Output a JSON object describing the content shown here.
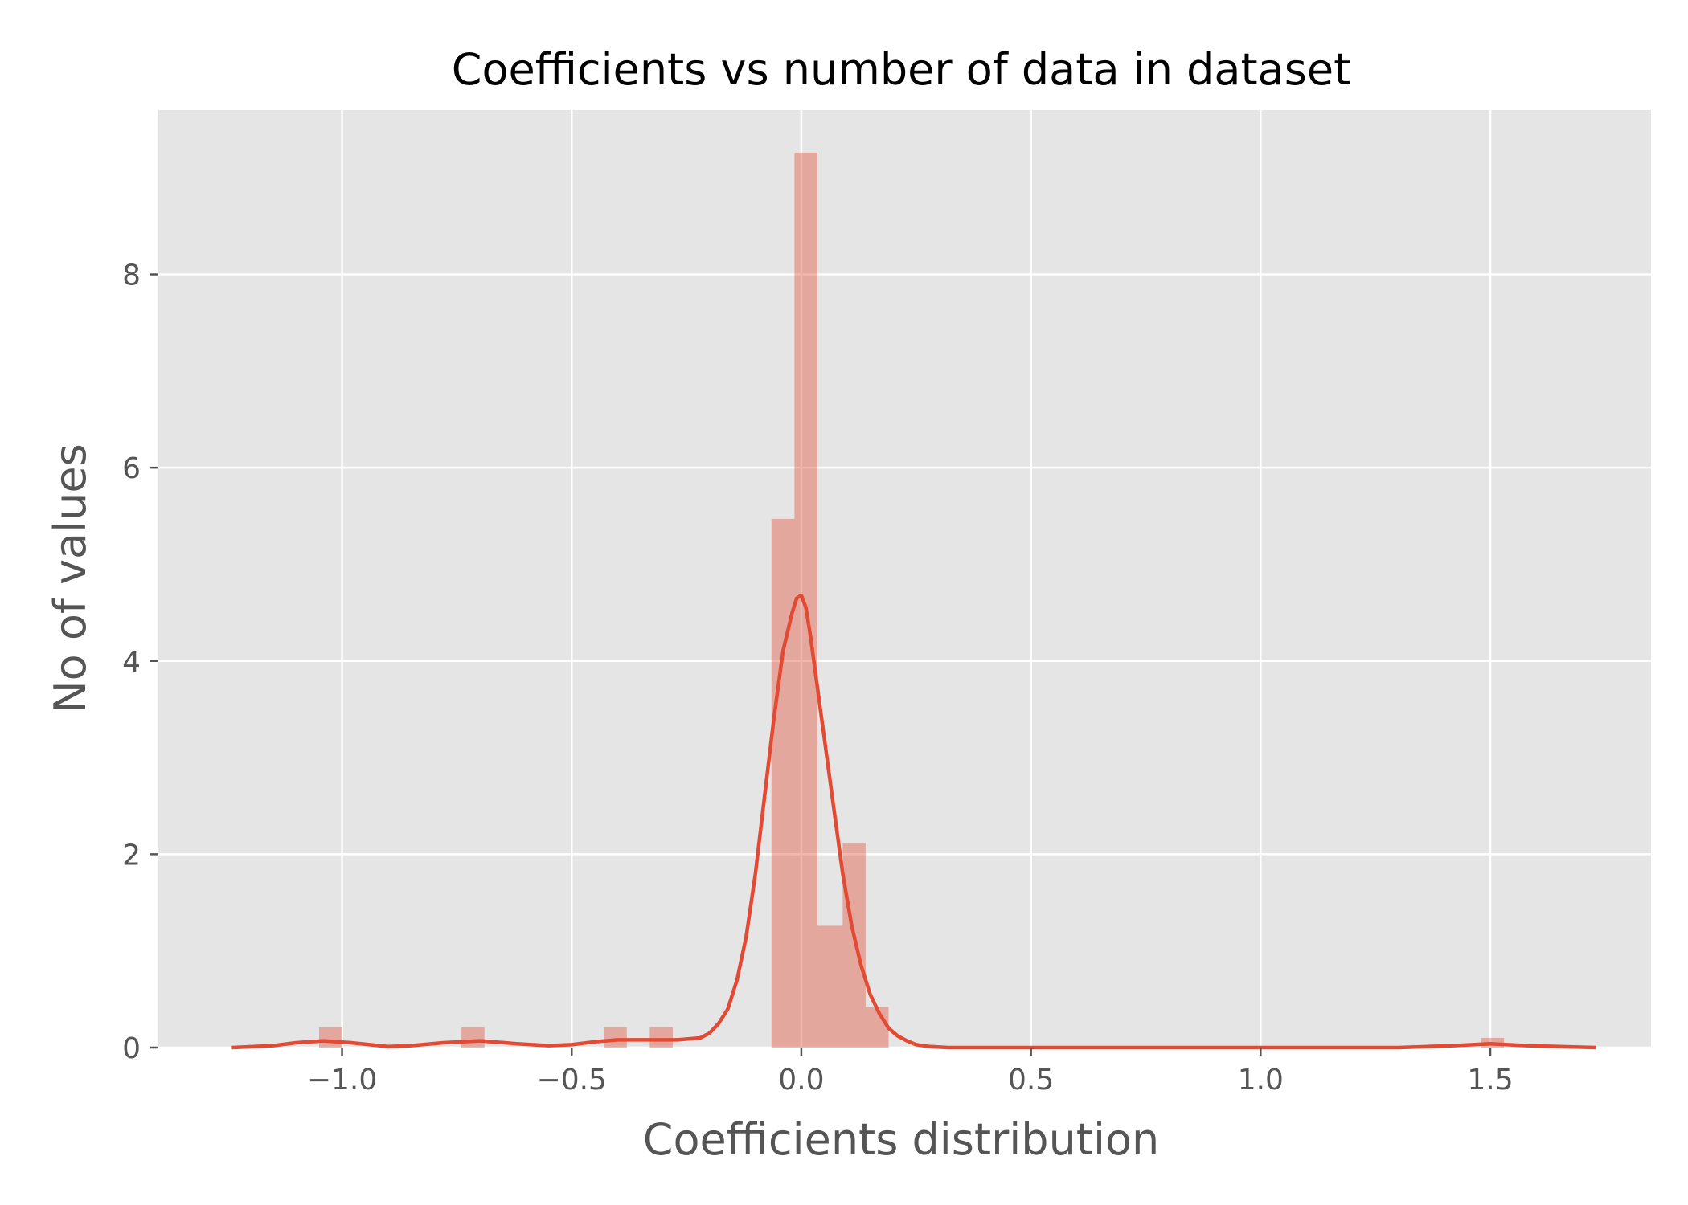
{
  "chart_data": {
    "type": "bar",
    "title": "Coefficients vs number of data in dataset",
    "xlabel": "Coefficients distribution",
    "ylabel": "No of values",
    "xlim": [
      -1.4,
      1.85
    ],
    "ylim": [
      0,
      9.7
    ],
    "x_ticks": [
      -1.0,
      -0.5,
      0.0,
      0.5,
      1.0,
      1.5
    ],
    "x_tick_labels": [
      "−1.0",
      "−0.5",
      "0.0",
      "0.5",
      "1.0",
      "1.5"
    ],
    "y_ticks": [
      0,
      2,
      4,
      6,
      8
    ],
    "y_tick_labels": [
      "0",
      "2",
      "4",
      "6",
      "8"
    ],
    "grid": true,
    "background": "#E5E5E5",
    "bar_color": "#E24A33",
    "line_color": "#E24A33",
    "histogram": [
      {
        "x0": -1.05,
        "x1": -1.0,
        "value": 0.21
      },
      {
        "x0": -0.74,
        "x1": -0.69,
        "value": 0.21
      },
      {
        "x0": -0.43,
        "x1": -0.38,
        "value": 0.21
      },
      {
        "x0": -0.33,
        "x1": -0.28,
        "value": 0.21
      },
      {
        "x0": -0.065,
        "x1": -0.015,
        "value": 5.47
      },
      {
        "x0": -0.015,
        "x1": 0.035,
        "value": 9.26
      },
      {
        "x0": 0.035,
        "x1": 0.09,
        "value": 1.26
      },
      {
        "x0": 0.09,
        "x1": 0.14,
        "value": 2.11
      },
      {
        "x0": 0.14,
        "x1": 0.19,
        "value": 0.42
      },
      {
        "x0": 1.48,
        "x1": 1.53,
        "value": 0.1
      }
    ],
    "kde": {
      "name": "",
      "x": [
        -1.24,
        -1.15,
        -1.1,
        -1.04,
        -0.98,
        -0.9,
        -0.85,
        -0.78,
        -0.7,
        -0.62,
        -0.55,
        -0.5,
        -0.45,
        -0.4,
        -0.33,
        -0.27,
        -0.22,
        -0.2,
        -0.18,
        -0.16,
        -0.14,
        -0.12,
        -0.1,
        -0.08,
        -0.06,
        -0.04,
        -0.02,
        -0.01,
        0.0,
        0.01,
        0.02,
        0.03,
        0.05,
        0.07,
        0.09,
        0.11,
        0.13,
        0.15,
        0.17,
        0.19,
        0.21,
        0.23,
        0.25,
        0.28,
        0.32,
        0.4,
        0.6,
        1.0,
        1.3,
        1.42,
        1.5,
        1.58,
        1.73
      ],
      "y": [
        0.0,
        0.02,
        0.05,
        0.07,
        0.05,
        0.01,
        0.02,
        0.05,
        0.07,
        0.04,
        0.02,
        0.03,
        0.06,
        0.08,
        0.08,
        0.08,
        0.1,
        0.15,
        0.25,
        0.4,
        0.7,
        1.15,
        1.8,
        2.6,
        3.4,
        4.1,
        4.5,
        4.65,
        4.68,
        4.55,
        4.25,
        3.9,
        3.2,
        2.5,
        1.8,
        1.25,
        0.85,
        0.55,
        0.35,
        0.2,
        0.12,
        0.07,
        0.03,
        0.01,
        0.0,
        0.0,
        0.0,
        0.0,
        0.0,
        0.02,
        0.04,
        0.02,
        0.0
      ]
    }
  }
}
